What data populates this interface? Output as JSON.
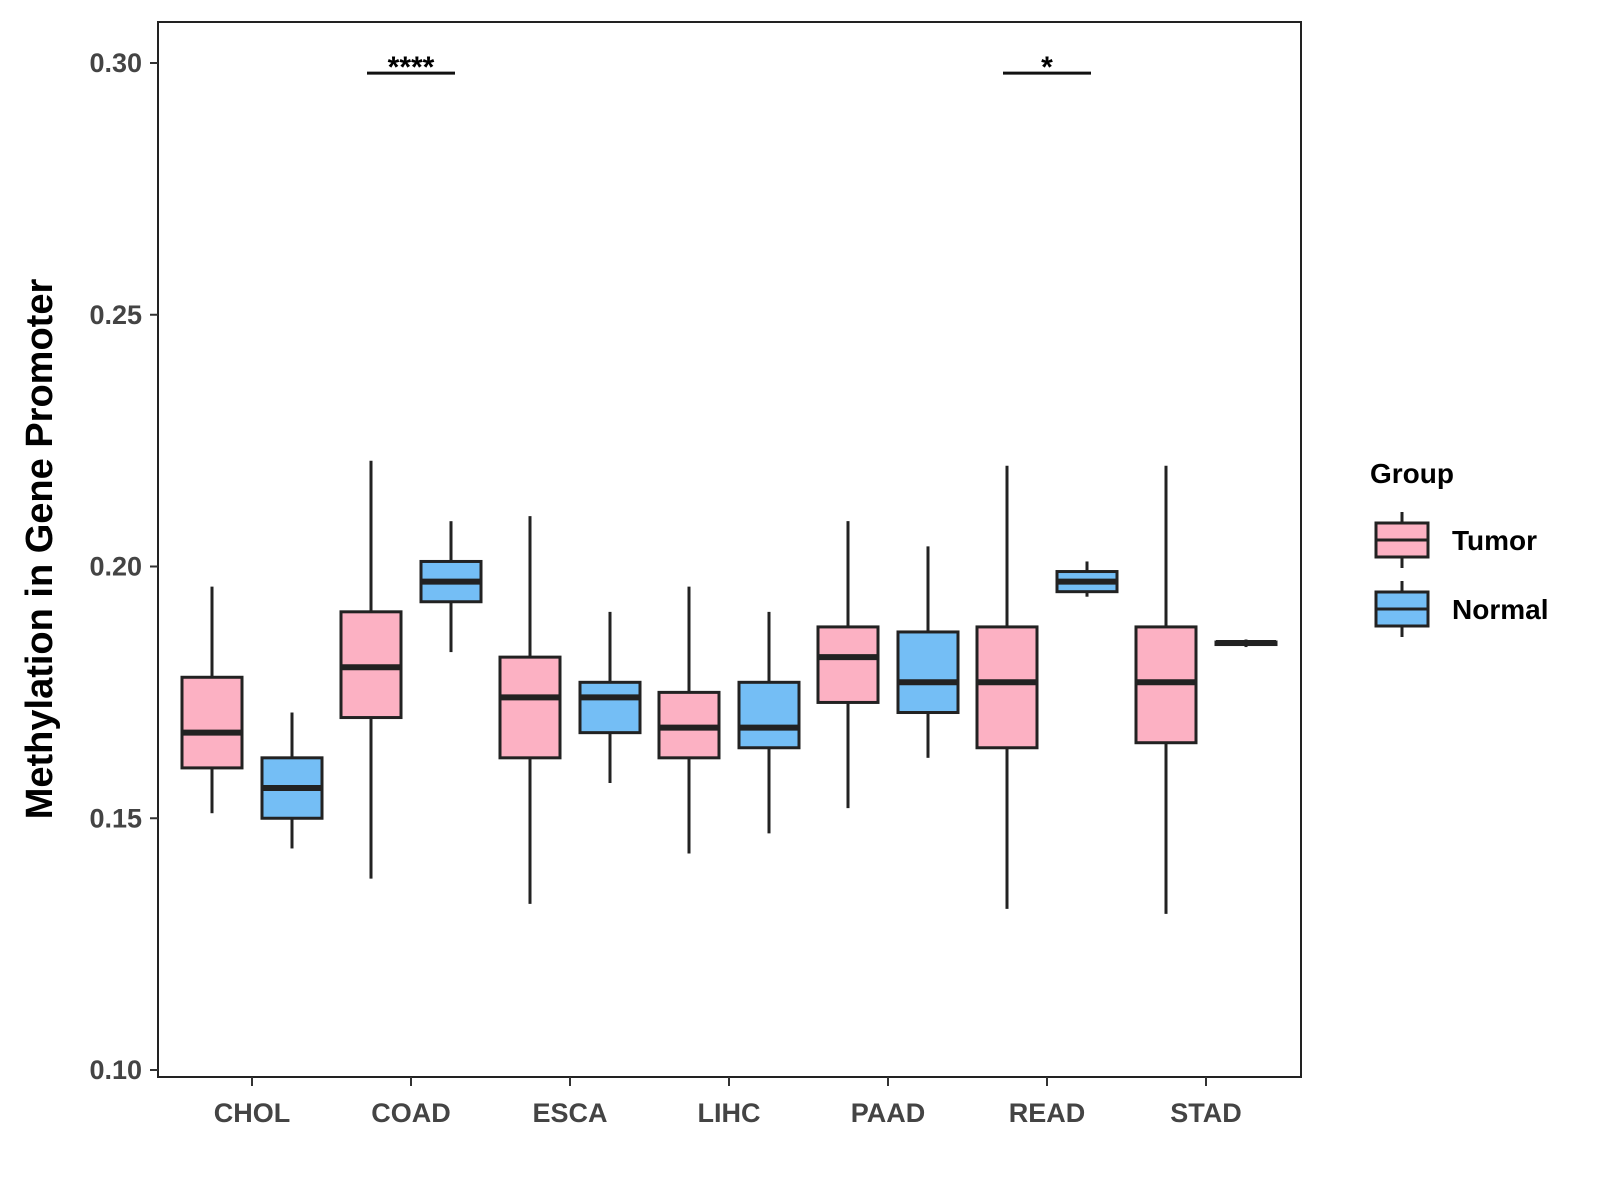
{
  "chart_data": {
    "type": "boxplot",
    "ylabel": "Methylation in Gene Promoter",
    "xlabel": "",
    "ylim": [
      0.1,
      0.3
    ],
    "yticks": [
      "0.10",
      "0.15",
      "0.20",
      "0.25",
      "0.30"
    ],
    "categories": [
      "CHOL",
      "COAD",
      "ESCA",
      "LIHC",
      "PAAD",
      "READ",
      "STAD"
    ],
    "legend": {
      "title": "Group",
      "position": "right",
      "entries": [
        {
          "name": "Tumor",
          "color": "#FCB1C3"
        },
        {
          "name": "Normal",
          "color": "#74BEF5"
        }
      ]
    },
    "series": [
      {
        "name": "Tumor",
        "color": "#FCB1C3",
        "boxes": [
          {
            "category": "CHOL",
            "min": 0.151,
            "q1": 0.16,
            "median": 0.167,
            "q3": 0.178,
            "max": 0.196
          },
          {
            "category": "COAD",
            "min": 0.138,
            "q1": 0.17,
            "median": 0.18,
            "q3": 0.191,
            "max": 0.221
          },
          {
            "category": "ESCA",
            "min": 0.133,
            "q1": 0.162,
            "median": 0.174,
            "q3": 0.182,
            "max": 0.21
          },
          {
            "category": "LIHC",
            "min": 0.143,
            "q1": 0.162,
            "median": 0.168,
            "q3": 0.175,
            "max": 0.196
          },
          {
            "category": "PAAD",
            "min": 0.152,
            "q1": 0.173,
            "median": 0.182,
            "q3": 0.188,
            "max": 0.209
          },
          {
            "category": "READ",
            "min": 0.132,
            "q1": 0.164,
            "median": 0.177,
            "q3": 0.188,
            "max": 0.22
          },
          {
            "category": "STAD",
            "min": 0.131,
            "q1": 0.165,
            "median": 0.177,
            "q3": 0.188,
            "max": 0.22
          }
        ]
      },
      {
        "name": "Normal",
        "color": "#74BEF5",
        "boxes": [
          {
            "category": "CHOL",
            "min": 0.144,
            "q1": 0.15,
            "median": 0.156,
            "q3": 0.162,
            "max": 0.171
          },
          {
            "category": "COAD",
            "min": 0.183,
            "q1": 0.193,
            "median": 0.197,
            "q3": 0.201,
            "max": 0.209
          },
          {
            "category": "ESCA",
            "min": 0.157,
            "q1": 0.167,
            "median": 0.174,
            "q3": 0.177,
            "max": 0.191
          },
          {
            "category": "LIHC",
            "min": 0.147,
            "q1": 0.164,
            "median": 0.168,
            "q3": 0.177,
            "max": 0.191
          },
          {
            "category": "PAAD",
            "min": 0.162,
            "q1": 0.171,
            "median": 0.177,
            "q3": 0.187,
            "max": 0.204
          },
          {
            "category": "READ",
            "min": 0.194,
            "q1": 0.195,
            "median": 0.197,
            "q3": 0.199,
            "max": 0.201
          },
          {
            "category": "STAD",
            "min": 0.184,
            "q1": 0.1845,
            "median": 0.1848,
            "q3": 0.185,
            "max": 0.1855
          }
        ]
      }
    ],
    "annotations": [
      {
        "category": "COAD",
        "label": "****",
        "y": 0.298
      },
      {
        "category": "READ",
        "label": "*",
        "y": 0.298
      }
    ]
  }
}
